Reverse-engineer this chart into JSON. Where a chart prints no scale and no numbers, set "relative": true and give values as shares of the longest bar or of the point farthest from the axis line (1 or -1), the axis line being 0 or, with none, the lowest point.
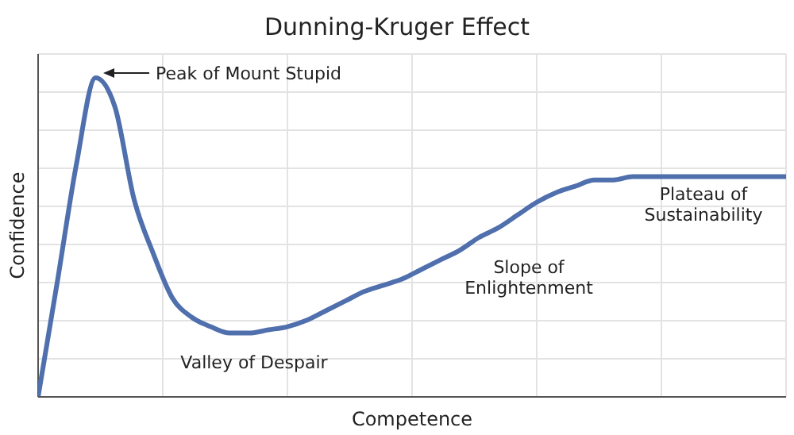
{
  "chart_data": {
    "type": "line",
    "title": "Dunning-Kruger Effect",
    "xlabel": "Competence",
    "ylabel": "Confidence",
    "relative": true,
    "grid": true,
    "marker": "none",
    "line_style": "solid",
    "categories": [
      null,
      null,
      null,
      null,
      null,
      null,
      null,
      null,
      null,
      null,
      null,
      null,
      null,
      null,
      null,
      null,
      null,
      null,
      null,
      null,
      null,
      null,
      null,
      null,
      null,
      null,
      null,
      null,
      null,
      null,
      null,
      null,
      null,
      null,
      null,
      null,
      null,
      null,
      null,
      null
    ],
    "series": [
      {
        "color": "#4f6fad",
        "values": [
          0,
          0.36,
          0.73,
          1,
          0.91,
          0.62,
          0.45,
          0.31,
          0.25,
          0.22,
          0.2,
          0.2,
          0.21,
          0.22,
          0.24,
          0.27,
          0.3,
          0.33,
          0.35,
          0.37,
          0.4,
          0.43,
          0.46,
          0.5,
          0.53,
          0.57,
          0.61,
          0.64,
          0.66,
          0.68,
          0.68,
          0.69,
          0.69,
          0.69,
          0.69,
          0.69,
          0.69,
          0.69,
          0.69,
          0.69
        ]
      }
    ],
    "annotations": [
      "Peak of Mount Stupid",
      "Valley of Despair",
      "Slope of\nEnlightenment",
      "Plateau of\nSustainability"
    ]
  }
}
